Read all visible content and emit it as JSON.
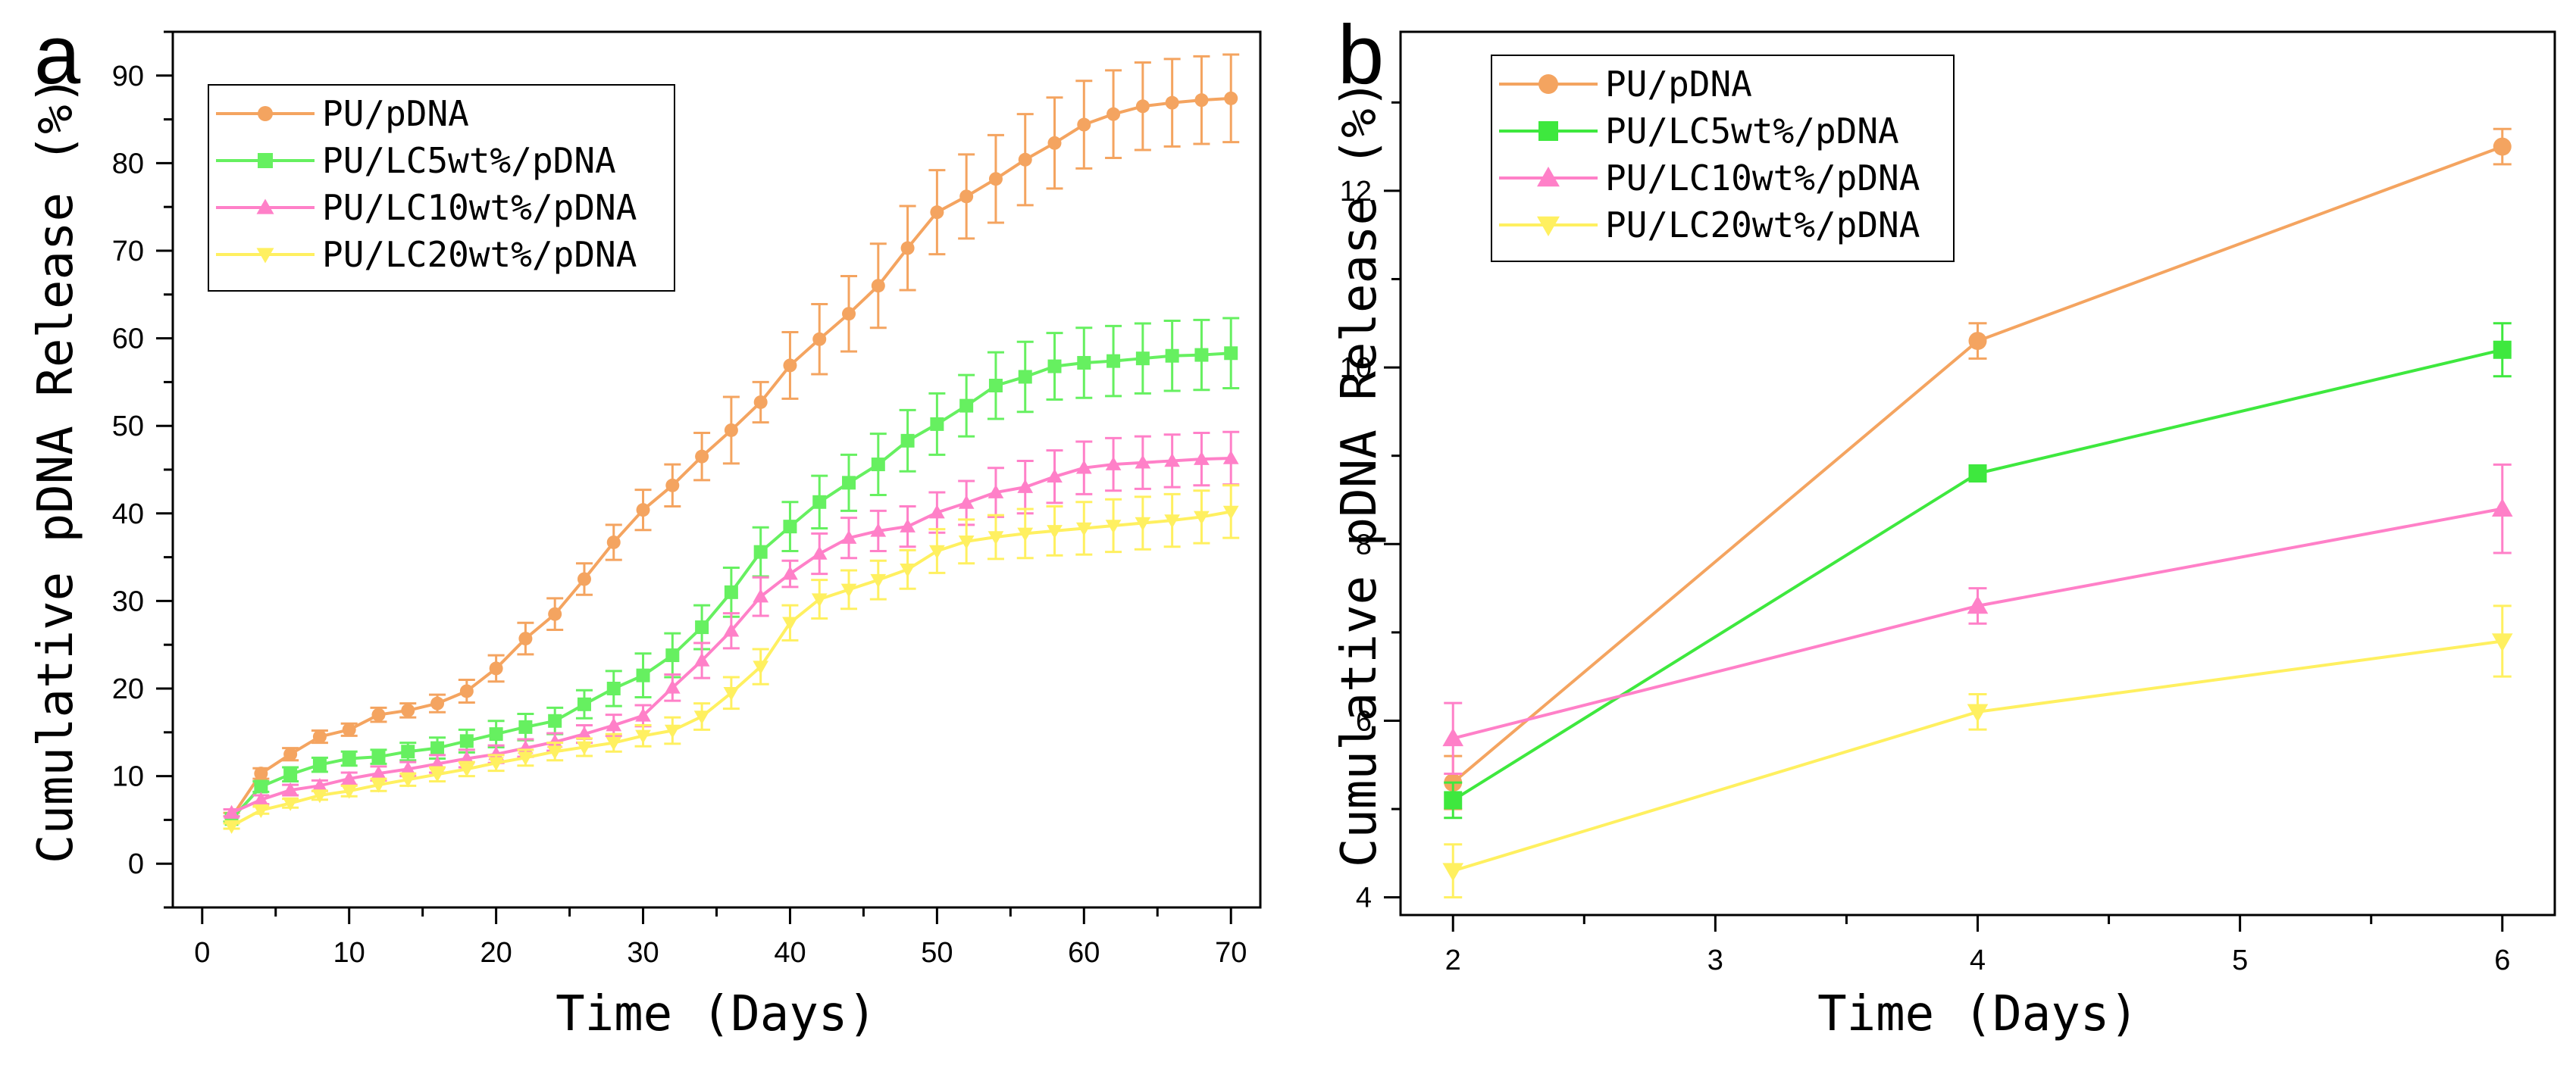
{
  "chart_data": [
    {
      "panel": "a",
      "type": "line",
      "xlabel": "Time (Days)",
      "ylabel": "Cumulative pDNA Release (%)",
      "xlim": [
        -2,
        72
      ],
      "ylim": [
        -5,
        95
      ],
      "xticks": [
        0,
        10,
        20,
        30,
        40,
        50,
        60,
        70
      ],
      "yticks": [
        0,
        10,
        20,
        30,
        40,
        50,
        60,
        70,
        80,
        90
      ],
      "legend_position": "top-left",
      "x": [
        2,
        4,
        6,
        8,
        10,
        12,
        14,
        16,
        18,
        20,
        22,
        24,
        26,
        28,
        30,
        32,
        34,
        36,
        38,
        40,
        42,
        44,
        46,
        48,
        50,
        52,
        54,
        56,
        58,
        60,
        62,
        64,
        66,
        68,
        70
      ],
      "series": [
        {
          "name": "PU/pDNA",
          "color": "#F4A460",
          "marker": "circle",
          "values": [
            5.3,
            10.3,
            12.5,
            14.5,
            15.3,
            17,
            17.5,
            18.3,
            19.7,
            22.3,
            25.7,
            28.5,
            32.5,
            36.7,
            40.4,
            43.2,
            46.5,
            49.5,
            52.7,
            56.9,
            59.9,
            62.8,
            66,
            70.3,
            74.4,
            76.2,
            78.2,
            80.4,
            82.3,
            84.4,
            85.6,
            86.5,
            86.9,
            87.2,
            87.4
          ],
          "errors": [
            0.5,
            0.6,
            0.7,
            0.7,
            0.7,
            0.8,
            0.8,
            1,
            1.3,
            1.5,
            1.8,
            1.8,
            1.8,
            2,
            2.3,
            2.4,
            2.7,
            3.8,
            2.3,
            3.8,
            4,
            4.3,
            4.8,
            4.8,
            4.8,
            4.8,
            5,
            5.2,
            5.2,
            5,
            5,
            5,
            5,
            5,
            5
          ]
        },
        {
          "name": "PU/LC5wt%/pDNA",
          "color": "#66F060",
          "marker": "square",
          "values": [
            5.1,
            8.8,
            10.2,
            11.3,
            12,
            12.2,
            12.8,
            13.2,
            14,
            14.8,
            15.6,
            16.3,
            18.2,
            20,
            21.5,
            23.8,
            27,
            31,
            35.6,
            38.5,
            41.3,
            43.5,
            45.6,
            48.3,
            50.2,
            52.3,
            54.6,
            55.6,
            56.8,
            57.2,
            57.4,
            57.7,
            58,
            58.1,
            58.3
          ],
          "errors": [
            0.3,
            0.6,
            0.8,
            0.8,
            0.8,
            0.8,
            1,
            1.2,
            1.3,
            1.5,
            1.5,
            1.5,
            1.6,
            2,
            2.5,
            2.5,
            2.5,
            2.8,
            2.8,
            2.8,
            3,
            3.2,
            3.5,
            3.5,
            3.5,
            3.5,
            3.8,
            4,
            3.8,
            4,
            4,
            4,
            4,
            4,
            4
          ]
        },
        {
          "name": "PU/LC10wt%/pDNA",
          "color": "#FF80C8",
          "marker": "triangle-up",
          "values": [
            5.8,
            7.3,
            8.4,
            8.9,
            9.7,
            10.3,
            10.8,
            11.4,
            12,
            12.5,
            13.2,
            13.9,
            14.8,
            15.8,
            16.9,
            20.1,
            23.2,
            26.6,
            30.5,
            33.1,
            35.4,
            37.2,
            38,
            38.5,
            40.1,
            41.2,
            42.4,
            43,
            44.2,
            45.2,
            45.6,
            45.8,
            46,
            46.2,
            46.3
          ],
          "errors": [
            0.4,
            0.5,
            0.6,
            0.6,
            0.7,
            0.8,
            0.8,
            1,
            1,
            1,
            1,
            1,
            1,
            1.2,
            1.2,
            1.5,
            2,
            2,
            2.2,
            1.5,
            2.3,
            2.3,
            2.3,
            2.3,
            2.3,
            2.5,
            2.8,
            3,
            3,
            3,
            3,
            3,
            3,
            3,
            3
          ]
        },
        {
          "name": "PU/LC20wt%/pDNA",
          "color": "#FFF060",
          "marker": "triangle-down",
          "values": [
            4.3,
            6.1,
            6.9,
            7.8,
            8.3,
            9,
            9.6,
            10.2,
            10.8,
            11.5,
            12.1,
            12.8,
            13.3,
            13.8,
            14.6,
            15.2,
            16.8,
            19.5,
            22.5,
            27.5,
            30.2,
            31.3,
            32.4,
            33.6,
            35.7,
            36.8,
            37.3,
            37.7,
            38,
            38.3,
            38.6,
            38.9,
            39.2,
            39.6,
            40.2
          ],
          "errors": [
            0.3,
            0.4,
            0.5,
            0.5,
            0.6,
            0.7,
            0.7,
            0.8,
            0.8,
            0.9,
            0.9,
            1,
            1,
            1,
            1.2,
            1.5,
            1.5,
            1.8,
            2,
            2,
            2.2,
            2.2,
            2.2,
            2.2,
            2.5,
            2.5,
            2.5,
            2.8,
            2.8,
            3,
            3,
            3,
            3,
            3,
            3
          ]
        }
      ]
    },
    {
      "panel": "b",
      "type": "line",
      "xlabel": "Time (Days)",
      "ylabel": "Cumulative pDNA Release (%)",
      "xlim": [
        1.8,
        6.2
      ],
      "ylim": [
        3.8,
        13.8
      ],
      "xticks": [
        2,
        3,
        4,
        5,
        6
      ],
      "yticks": [
        4,
        6,
        8,
        10,
        12
      ],
      "legend_position": "top-left",
      "x": [
        2,
        4,
        6
      ],
      "series": [
        {
          "name": "PU/pDNA",
          "color": "#F4A460",
          "marker": "circle",
          "values": [
            5.3,
            10.3,
            12.5
          ],
          "errors": [
            0.3,
            0.2,
            0.2
          ]
        },
        {
          "name": "PU/LC5wt%/pDNA",
          "color": "#3EE83E",
          "marker": "square",
          "values": [
            5.1,
            8.8,
            10.2
          ],
          "errors": [
            0.2,
            0.05,
            0.3
          ]
        },
        {
          "name": "PU/LC10wt%/pDNA",
          "color": "#FF80C8",
          "marker": "triangle-up",
          "values": [
            5.8,
            7.3,
            8.4
          ],
          "errors": [
            0.4,
            0.2,
            0.5
          ]
        },
        {
          "name": "PU/LC20wt%/pDNA",
          "color": "#FFF060",
          "marker": "triangle-down",
          "values": [
            4.3,
            6.1,
            6.9
          ],
          "errors": [
            0.3,
            0.2,
            0.4
          ]
        }
      ]
    }
  ]
}
